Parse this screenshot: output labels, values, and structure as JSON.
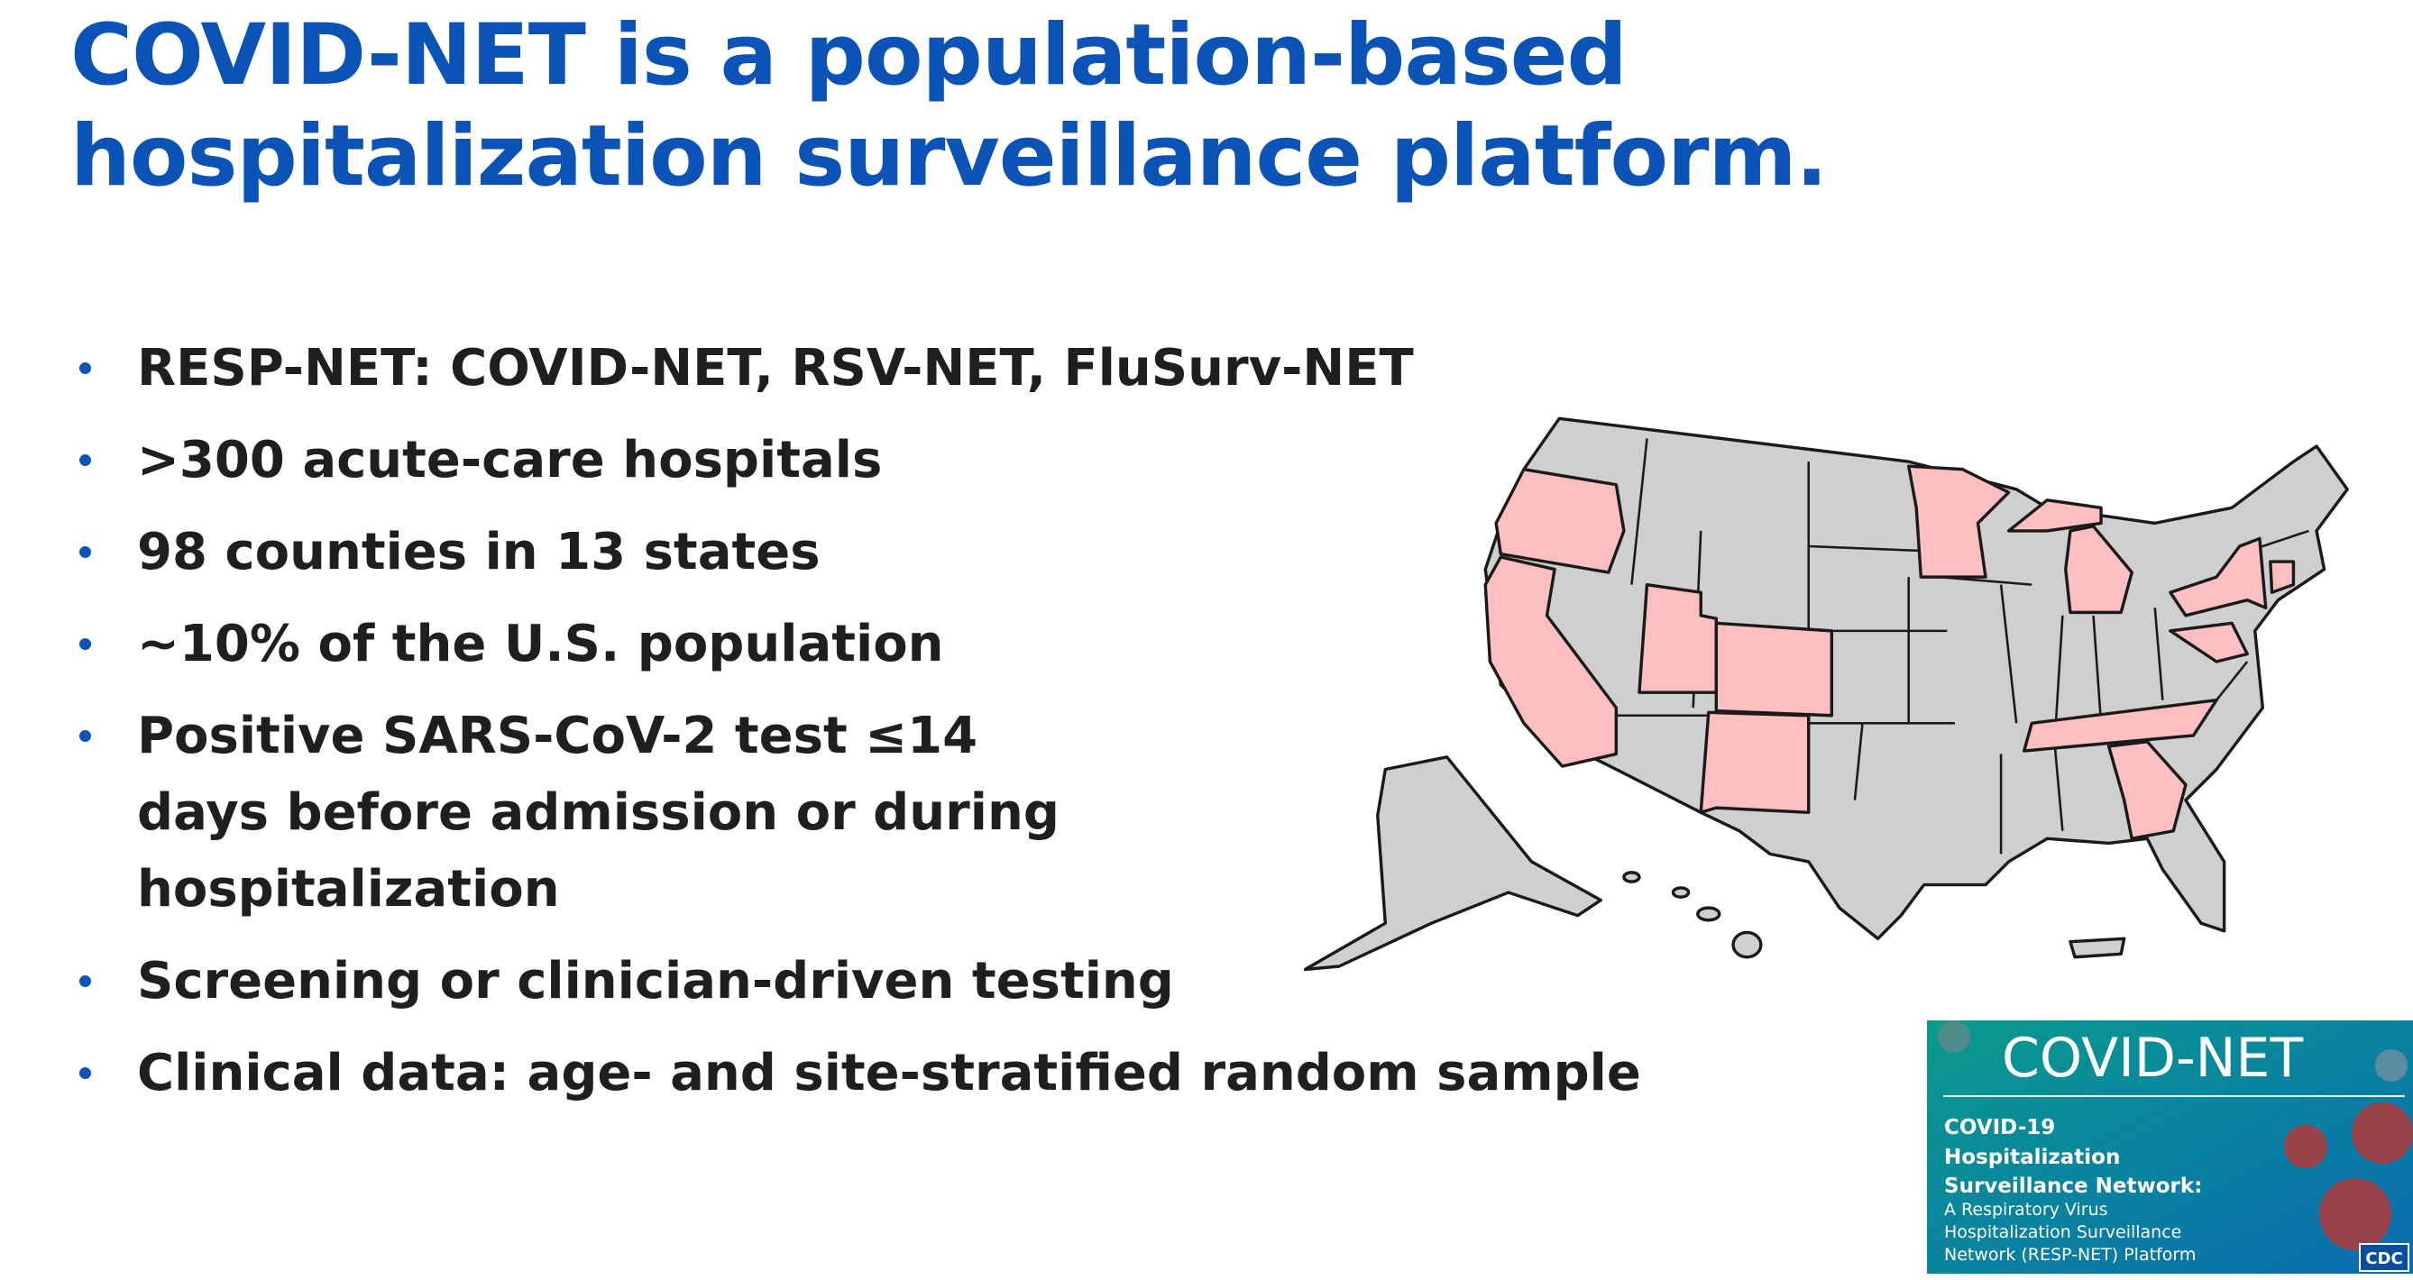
{
  "title": "COVID-NET is a population-based hospitalization surveillance platform.",
  "bullets": [
    "RESP-NET: COVID-NET, RSV-NET, FluSurv-NET",
    ">300 acute-care hospitals",
    "98 counties in 13 states",
    "~10% of the U.S. population",
    "Positive SARS-CoV-2 test ≤14 days before admission or during hospitalization",
    "Screening or clinician-driven testing",
    "Clinical data: age- and site-stratified random sample"
  ],
  "badge": {
    "title": "COVID-NET",
    "heading_lines": [
      "COVID-19",
      "Hospitalization",
      "Surveillance Network:"
    ],
    "sub_lines": [
      "A Respiratory Virus",
      "Hospitalization Surveillance",
      "Network (RESP-NET) Platform"
    ],
    "logo": "CDC"
  }
}
